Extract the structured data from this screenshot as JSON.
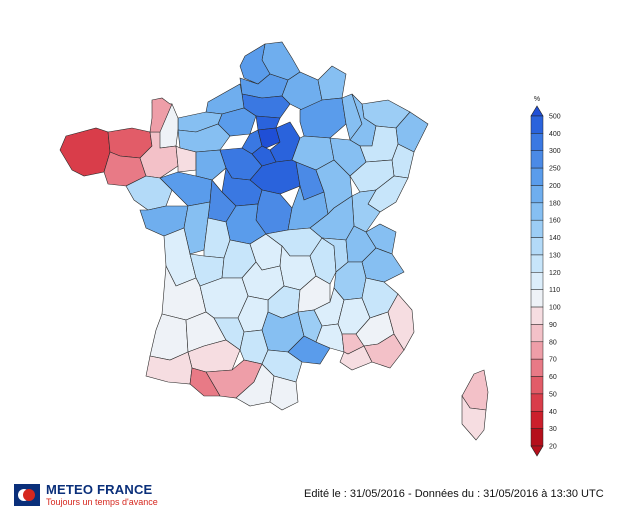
{
  "legend": {
    "unit": "%",
    "ticks": [
      "500",
      "400",
      "300",
      "250",
      "200",
      "180",
      "160",
      "140",
      "130",
      "120",
      "110",
      "100",
      "90",
      "80",
      "70",
      "60",
      "50",
      "40",
      "30",
      "20"
    ],
    "colors": [
      "#1f4fd6",
      "#2a63dc",
      "#3a78e2",
      "#4b8ae6",
      "#5a9ceb",
      "#6faeee",
      "#86bff2",
      "#9ccdf5",
      "#b3daf8",
      "#c7e5fa",
      "#dceefb",
      "#eef2f7",
      "#f6dde1",
      "#f3c1c8",
      "#ee9ea8",
      "#e87a86",
      "#e25c68",
      "#d93d4a",
      "#cc1f2c",
      "#b50f1b"
    ]
  },
  "footer": {
    "edit_text": "Edité le : 31/05/2016 - Données du : 31/05/2016 à 13:30 UTC"
  },
  "logo": {
    "title": "METEO FRANCE",
    "slogan": "Toujours un temps d'avance"
  },
  "icons": {
    "legend_top_arrow": "triangle-up-icon",
    "legend_bottom_arrow": "triangle-down-icon",
    "logo_mark": "meteo-france-logo-icon"
  }
}
